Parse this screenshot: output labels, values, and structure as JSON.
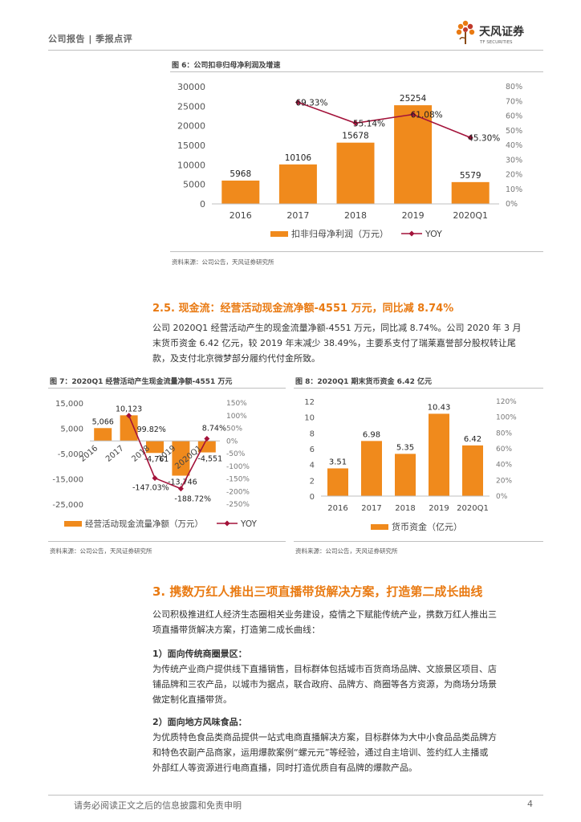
{
  "header": {
    "left": "公司报告 | 季报点评",
    "brand": "天风证券",
    "brand_en": "TF SECURITIES"
  },
  "fig6": {
    "caption": "图 6：公司扣非归母净利润及增速",
    "source": "资料来源：公司公告，天风证券研究所"
  },
  "section_2_5": {
    "title": "2.5. 现金流：经营活动现金流净额-4551 万元，同比减 8.74%",
    "lines": [
      "公司 2020Q1 经营活动产生的现金流量净额-4551 万元，同比减 8.74%。公司 2020 年 3 月",
      "末货币资金 6.42 亿元，较 2019 年末减少 38.49%，主要系支付了瑞莱嘉誉部分股权转让尾",
      "款，及支付北京微梦部分履约代付金所致。"
    ]
  },
  "fig7": {
    "caption": "图 7：2020Q1 经营活动产生现金流量净额-4551 万元",
    "source": "资料来源：公司公告，天风证券研究所"
  },
  "fig8": {
    "caption": "图 8：2020Q1 期末货币资金 6.42 亿元",
    "source": "资料来源：公司公告，天风证券研究所"
  },
  "section_3": {
    "title": "3.  携数万红人推出三项直播带货解决方案，打造第二成长曲线",
    "intro": [
      "公司积极推进红人经济生态圈相关业务建设，疫情之下赋能传统产业，携数万红人推出三",
      "项直播带货解决方案，打造第二成长曲线："
    ],
    "item1_title": "1）面向传统商圈景区：",
    "item1_lines": [
      "为传统产业商户提供线下直播销售，目标群体包括城市百货商场品牌、文旅景区项目、店",
      "铺品牌和三农产品，以城市为据点，联合政府、品牌方、商圈等各方资源，为商场分场景",
      "做定制化直播带货。"
    ],
    "item2_title": "2）面向地方风味食品：",
    "item2_lines": [
      "为优质特色食品类商品提供一站式电商直播解决方案，目标群体为大中小食品品类品牌方",
      "和特色农副产品商家，运用爆款案例“螺元元”等经验，通过自主培训、签约红人主播或",
      "外部红人等资源进行电商直播，同时打造优质自有品牌的爆款产品。"
    ]
  },
  "footer": {
    "disclaimer": "请务必阅读正文之后的信息披露和免责申明",
    "page": "4"
  },
  "colors": {
    "bar": "#f08a1c",
    "line": "#a3123a",
    "accent": "#e97a12"
  },
  "chart_data": [
    {
      "id": "fig6",
      "type": "bar",
      "categories": [
        "2016",
        "2017",
        "2018",
        "2019",
        "2020Q1"
      ],
      "series": [
        {
          "name": "扣非归母净利润（万元）",
          "type": "bar",
          "values": [
            5968,
            10106,
            15678,
            25254,
            5579
          ],
          "labels": [
            "5968",
            "10106",
            "15678",
            "25254",
            "5579"
          ]
        },
        {
          "name": "YOY",
          "type": "line",
          "values": [
            null,
            69.33,
            55.14,
            61.08,
            45.3
          ],
          "labels": [
            "",
            "69.33%",
            "55.14%",
            "61.08%",
            "45.30%"
          ]
        }
      ],
      "y_left": {
        "min": 0,
        "max": 30000,
        "ticks": [
          "0",
          "5000",
          "10000",
          "15000",
          "20000",
          "25000",
          "30000"
        ]
      },
      "y_right": {
        "min": 0,
        "max": 80,
        "ticks": [
          "0%",
          "10%",
          "20%",
          "30%",
          "40%",
          "50%",
          "60%",
          "70%",
          "80%"
        ]
      },
      "legend": "bottom"
    },
    {
      "id": "fig7",
      "type": "bar",
      "categories": [
        "2016",
        "2017",
        "2018",
        "2019",
        "2020Q1"
      ],
      "series": [
        {
          "name": "经营活动现金流量净额（万元）",
          "type": "bar",
          "values": [
            5066,
            10123,
            -4761,
            -13746,
            -4551
          ],
          "labels": [
            "5,066",
            "10,123",
            "-4,761",
            "-13,746",
            "-4,551"
          ]
        },
        {
          "name": "YOY",
          "type": "line",
          "values": [
            null,
            99.82,
            -147.03,
            -188.72,
            8.74
          ],
          "labels": [
            "",
            "99.82%",
            "-147.03%",
            "-188.72%",
            "8.74%"
          ]
        }
      ],
      "y_left": {
        "min": -25000,
        "max": 15000,
        "ticks": [
          "-25,000",
          "-15,000",
          "-5,000",
          "5,000",
          "15,000"
        ]
      },
      "y_right": {
        "min": -250,
        "max": 150,
        "ticks": [
          "-250%",
          "-200%",
          "-150%",
          "-100%",
          "-50%",
          "0%",
          "50%",
          "100%",
          "150%"
        ]
      },
      "legend": "bottom"
    },
    {
      "id": "fig8",
      "type": "bar",
      "categories": [
        "2016",
        "2017",
        "2018",
        "2019",
        "2020Q1"
      ],
      "series": [
        {
          "name": "货币资金（亿元）",
          "type": "bar",
          "values": [
            3.51,
            6.98,
            5.35,
            10.43,
            6.42
          ],
          "labels": [
            "3.51",
            "6.98",
            "5.35",
            "10.43",
            "6.42"
          ]
        }
      ],
      "y_left": {
        "min": 0,
        "max": 12,
        "ticks": [
          "0",
          "2",
          "4",
          "6",
          "8",
          "10",
          "12"
        ]
      },
      "y_right": {
        "min": 0,
        "max": 120,
        "ticks": [
          "0%",
          "20%",
          "40%",
          "60%",
          "80%",
          "100%",
          "120%"
        ]
      },
      "legend": "bottom"
    }
  ]
}
